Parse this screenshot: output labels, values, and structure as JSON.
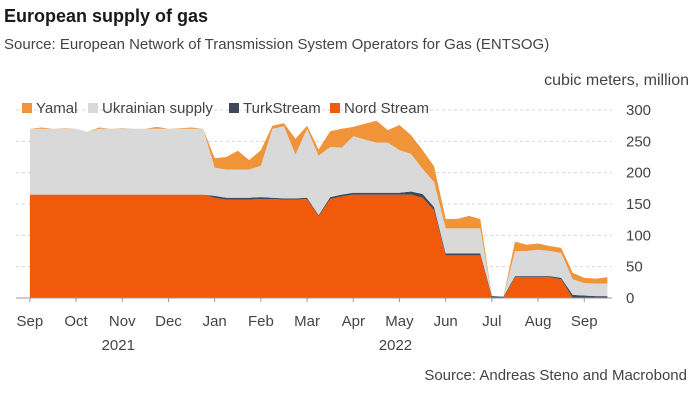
{
  "title": "European supply of gas",
  "subtitle": "Source: European Network of Transmission System Operators for Gas (ENTSOG)",
  "source_note": "Source: Andreas Steno and Macrobond",
  "colors": {
    "yamal": "#f0943a",
    "ukrainian": "#d9d9d9",
    "turkstream": "#3e4a5c",
    "nordstream": "#f05a0a"
  },
  "chart_data": {
    "type": "area",
    "stacked": true,
    "title": "European supply of gas",
    "ylabel": "cubic meters, million",
    "ylim": [
      0,
      300
    ],
    "yticks": [
      0,
      50,
      100,
      150,
      200,
      250,
      300
    ],
    "month_ticks": [
      "Sep",
      "Oct",
      "Nov",
      "Dec",
      "Jan",
      "Feb",
      "Mar",
      "Apr",
      "May",
      "Jun",
      "Jul",
      "Aug",
      "Sep"
    ],
    "year_labels": [
      {
        "label": "2021",
        "month_index": 2
      },
      {
        "label": "2022",
        "month_index": 8
      }
    ],
    "legend": [
      "Yamal",
      "Ukrainian supply",
      "TurkStream",
      "Nord Stream"
    ],
    "x": [
      0,
      0.25,
      0.5,
      0.75,
      1.0,
      1.25,
      1.5,
      1.75,
      2.0,
      2.25,
      2.5,
      2.75,
      3.0,
      3.25,
      3.5,
      3.75,
      4.0,
      4.25,
      4.5,
      4.75,
      5.0,
      5.25,
      5.5,
      5.75,
      6.0,
      6.25,
      6.5,
      6.75,
      7.0,
      7.25,
      7.5,
      7.75,
      8.0,
      8.25,
      8.5,
      8.75,
      9.0,
      9.25,
      9.5,
      9.75,
      10.0,
      10.25,
      10.5,
      10.75,
      11.0,
      11.25,
      11.5,
      11.75,
      12.0,
      12.25,
      12.5
    ],
    "series": [
      {
        "name": "Nord Stream",
        "values": [
          165,
          165,
          165,
          165,
          165,
          165,
          165,
          165,
          165,
          165,
          165,
          165,
          165,
          165,
          165,
          165,
          160,
          157,
          157,
          157,
          158,
          158,
          157,
          157,
          158,
          130,
          158,
          162,
          165,
          165,
          165,
          165,
          165,
          165,
          160,
          140,
          68,
          68,
          68,
          68,
          0,
          0,
          33,
          33,
          33,
          33,
          30,
          0,
          0,
          0,
          0
        ]
      },
      {
        "name": "TurkStream",
        "values": [
          0,
          0,
          0,
          0,
          0,
          0,
          0,
          0,
          0,
          0,
          0,
          0,
          0,
          0,
          0,
          0,
          3,
          3,
          3,
          3,
          3,
          2,
          2,
          2,
          2,
          2,
          3,
          3,
          3,
          3,
          3,
          3,
          3,
          5,
          6,
          5,
          3,
          3,
          3,
          3,
          3,
          2,
          2,
          2,
          2,
          2,
          2,
          5,
          4,
          3,
          3
        ]
      },
      {
        "name": "Ukrainian supply",
        "values": [
          105,
          105,
          105,
          105,
          105,
          100,
          105,
          105,
          105,
          105,
          105,
          105,
          105,
          105,
          105,
          105,
          45,
          45,
          45,
          45,
          50,
          110,
          115,
          70,
          110,
          95,
          80,
          75,
          90,
          85,
          80,
          80,
          68,
          60,
          40,
          40,
          40,
          40,
          40,
          40,
          0,
          0,
          40,
          40,
          42,
          40,
          40,
          25,
          20,
          20,
          20
        ]
      },
      {
        "name": "Yamal",
        "values": [
          0,
          2,
          0,
          1,
          0,
          0,
          2,
          0,
          1,
          0,
          0,
          3,
          0,
          1,
          2,
          0,
          15,
          20,
          30,
          15,
          25,
          5,
          5,
          25,
          5,
          10,
          25,
          30,
          15,
          25,
          35,
          20,
          40,
          30,
          30,
          25,
          15,
          15,
          20,
          15,
          0,
          0,
          15,
          10,
          10,
          8,
          8,
          10,
          8,
          8,
          10
        ]
      }
    ]
  }
}
